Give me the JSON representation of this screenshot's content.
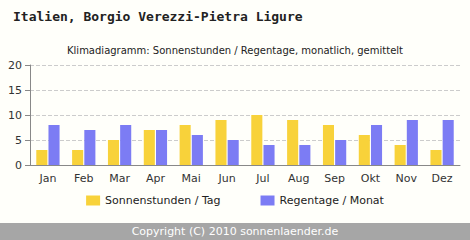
{
  "chart_data": {
    "type": "bar",
    "title": "Italien, Borgio Verezzi-Pietra Ligure",
    "subtitle": "Klimadiagramm: Sonnenstunden / Regentage, monatlich, gemittelt",
    "annotations": [
      "Copyright (C) 2010 sonnenlaender.de"
    ],
    "categories": [
      "Jan",
      "Feb",
      "Mar",
      "Apr",
      "Mai",
      "Jun",
      "Jul",
      "Aug",
      "Sep",
      "Okt",
      "Nov",
      "Dez"
    ],
    "series": [
      {
        "name": "Sonnenstunden / Tag",
        "color": "#f8d23a",
        "values": [
          3,
          3,
          5,
          7,
          8,
          9,
          10,
          9,
          8,
          6,
          4,
          3
        ]
      },
      {
        "name": "Regentage / Monat",
        "color": "#7c7cf4",
        "values": [
          8,
          7,
          8,
          7,
          6,
          5,
          4,
          4,
          5,
          8,
          9,
          9
        ]
      }
    ],
    "ylim": [
      0,
      20
    ],
    "yticks": [
      0,
      5,
      10,
      15,
      20
    ],
    "grid": true,
    "legend": "bottom"
  }
}
